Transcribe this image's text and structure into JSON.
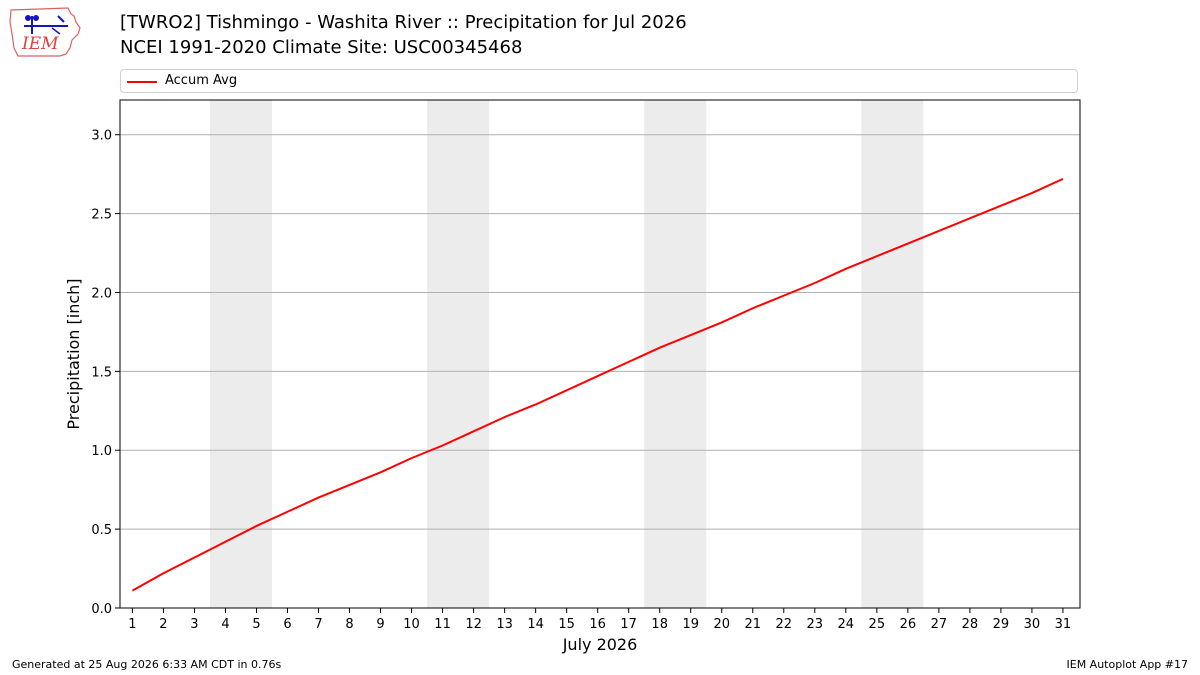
{
  "header": {
    "title_line1": "[TWRO2] Tishmingo - Washita River :: Precipitation for Jul 2026",
    "title_line2": "NCEI 1991-2020 Climate Site: USC00345468",
    "logo_text": "IEM"
  },
  "footer": {
    "generated": "Generated at 25 Aug 2026 6:33 AM CDT in 0.76s",
    "app": "IEM Autoplot App #17"
  },
  "colors": {
    "series": "#ff0000",
    "weekend_band": "#ececec",
    "grid": "#b0b0b0",
    "logo": "#1515c0",
    "logo_outline": "#e06060"
  },
  "chart_data": {
    "type": "line",
    "title": "[TWRO2] Tishmingo - Washita River :: Precipitation for Jul 2026",
    "subtitle": "NCEI 1991-2020 Climate Site: USC00345468",
    "xlabel": "July 2026",
    "ylabel": "Precipitation [inch]",
    "x": [
      1,
      2,
      3,
      4,
      5,
      6,
      7,
      8,
      9,
      10,
      11,
      12,
      13,
      14,
      15,
      16,
      17,
      18,
      19,
      20,
      21,
      22,
      23,
      24,
      25,
      26,
      27,
      28,
      29,
      30,
      31
    ],
    "xticks": [
      "1",
      "2",
      "3",
      "4",
      "5",
      "6",
      "7",
      "8",
      "9",
      "10",
      "11",
      "12",
      "13",
      "14",
      "15",
      "16",
      "17",
      "18",
      "19",
      "20",
      "21",
      "22",
      "23",
      "24",
      "25",
      "26",
      "27",
      "28",
      "29",
      "30",
      "31"
    ],
    "xlim": [
      0.6,
      31.55
    ],
    "ylim": [
      0,
      3.22
    ],
    "yticks": [
      "0.0",
      "0.5",
      "1.0",
      "1.5",
      "2.0",
      "2.5",
      "3.0"
    ],
    "grid": "y",
    "legend": "top",
    "series": [
      {
        "name": "Accum Avg",
        "values": [
          0.11,
          0.22,
          0.32,
          0.42,
          0.52,
          0.61,
          0.7,
          0.78,
          0.86,
          0.95,
          1.03,
          1.12,
          1.21,
          1.29,
          1.38,
          1.47,
          1.56,
          1.65,
          1.73,
          1.81,
          1.9,
          1.98,
          2.06,
          2.15,
          2.23,
          2.31,
          2.39,
          2.47,
          2.55,
          2.63,
          2.72
        ]
      }
    ],
    "weekend_bands": [
      [
        3.5,
        5.5
      ],
      [
        10.5,
        12.5
      ],
      [
        17.5,
        19.5
      ],
      [
        24.5,
        26.5
      ]
    ]
  }
}
